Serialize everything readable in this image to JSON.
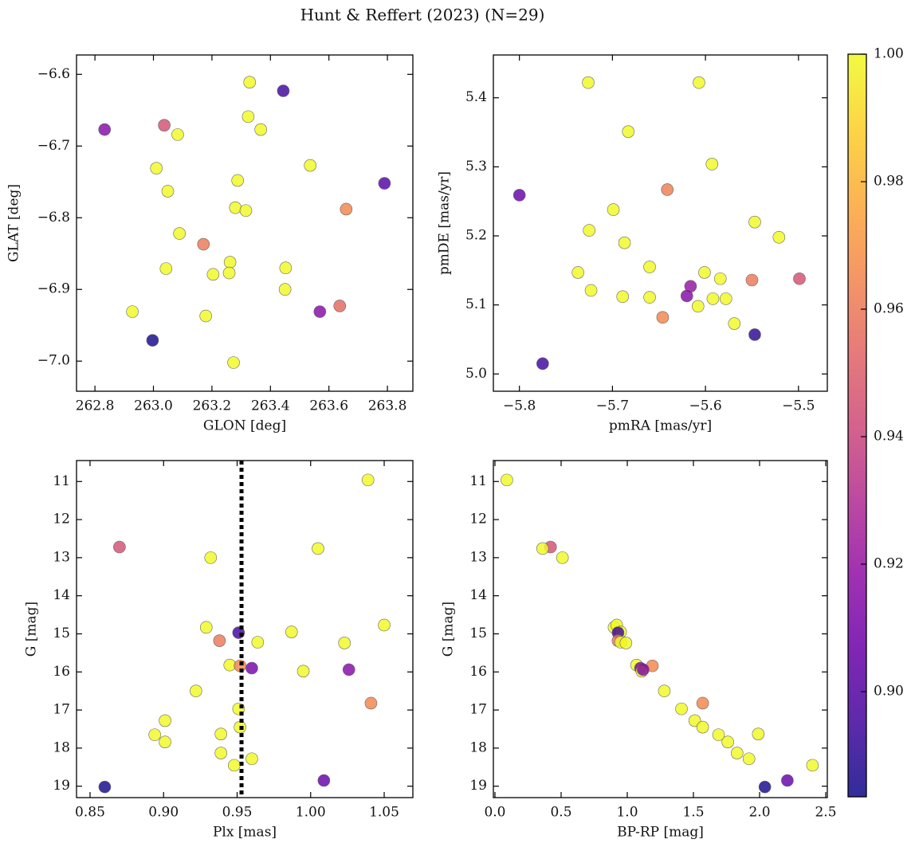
{
  "title": "Hunt & Reffert (2023) (N=29)",
  "colorbar": {
    "colormap": "plasma",
    "clim": [
      0.8835,
      1.0
    ],
    "ticks": [
      {
        "value": 0.9,
        "label": "0.90"
      },
      0.92,
      0.94,
      0.96,
      0.98,
      {
        "value": 1.0,
        "label": "1.00"
      }
    ]
  },
  "chart_data": [
    {
      "type": "scatter",
      "xlabel": "GLON [deg]",
      "ylabel": "GLAT [deg]",
      "xlim": [
        262.737,
        263.887
      ],
      "ylim": [
        -7.042,
        -6.573
      ],
      "xticks": [
        262.8,
        {
          "value": 263,
          "label": "263.0"
        },
        263.2,
        263.4,
        263.6,
        263.8
      ],
      "yticks": [
        {
          "value": -6.6,
          "label": "−6.6"
        },
        {
          "value": -6.7,
          "label": "−6.7"
        },
        {
          "value": -6.8,
          "label": "−6.8"
        },
        {
          "value": -6.9,
          "label": "−6.9"
        },
        {
          "value": -7.0,
          "label": "−7.0"
        }
      ],
      "x": [
        262.833,
        263.037,
        263.083,
        263.329,
        263.444,
        263.324,
        263.367,
        263.01,
        263.536,
        263.049,
        263.288,
        263.79,
        263.28,
        263.316,
        263.659,
        263.089,
        263.171,
        263.262,
        263.043,
        263.452,
        263.204,
        263.259,
        263.45,
        262.928,
        263.569,
        263.637,
        263.179,
        262.997,
        263.274
      ],
      "y": [
        -6.677,
        -6.671,
        -6.684,
        -6.611,
        -6.623,
        -6.659,
        -6.677,
        -6.731,
        -6.727,
        -6.763,
        -6.748,
        -6.752,
        -6.786,
        -6.79,
        -6.788,
        -6.822,
        -6.837,
        -6.862,
        -6.871,
        -6.87,
        -6.879,
        -6.877,
        -6.9,
        -6.931,
        -6.931,
        -6.923,
        -6.937,
        -6.971,
        -7.002
      ],
      "c": [
        0.915,
        0.945,
        1.0,
        1.0,
        0.895,
        1.0,
        1.0,
        1.0,
        1.0,
        1.0,
        1.0,
        0.9,
        1.0,
        1.0,
        0.965,
        1.0,
        0.96,
        1.0,
        1.0,
        1.0,
        1.0,
        1.0,
        1.0,
        1.0,
        0.915,
        0.955,
        1.0,
        0.885,
        1.0
      ]
    },
    {
      "type": "scatter",
      "xlabel": "pmRA [mas/yr]",
      "ylabel": "pmDE [mas/yr]",
      "xlim": [
        -5.828,
        -5.469
      ],
      "ylim": [
        4.975,
        5.462
      ],
      "xticks": [
        {
          "value": -5.8,
          "label": "−5.8"
        },
        {
          "value": -5.7,
          "label": "−5.7"
        },
        {
          "value": -5.6,
          "label": "−5.6"
        },
        {
          "value": -5.5,
          "label": "−5.5"
        }
      ],
      "yticks": [
        {
          "value": 5.0,
          "label": "5.0"
        },
        5.1,
        5.2,
        5.3,
        5.4
      ],
      "x": [
        -5.726,
        -5.607,
        -5.683,
        -5.593,
        -5.8,
        -5.641,
        -5.699,
        -5.547,
        -5.725,
        -5.521,
        -5.687,
        -5.66,
        -5.737,
        -5.601,
        -5.584,
        -5.723,
        -5.616,
        -5.689,
        -5.66,
        -5.62,
        -5.608,
        -5.592,
        -5.578,
        -5.55,
        -5.499,
        -5.646,
        -5.569,
        -5.547,
        -5.775
      ],
      "y": [
        5.422,
        5.422,
        5.351,
        5.304,
        5.259,
        5.267,
        5.238,
        5.22,
        5.208,
        5.198,
        5.19,
        5.155,
        5.147,
        5.147,
        5.138,
        5.121,
        5.127,
        5.112,
        5.111,
        5.113,
        5.098,
        5.109,
        5.109,
        5.136,
        5.138,
        5.082,
        5.073,
        5.057,
        5.015
      ],
      "c": [
        1.0,
        1.0,
        1.0,
        1.0,
        0.905,
        0.962,
        1.0,
        1.0,
        1.0,
        1.0,
        1.0,
        1.0,
        1.0,
        1.0,
        1.0,
        1.0,
        0.92,
        1.0,
        1.0,
        0.915,
        1.0,
        1.0,
        1.0,
        0.96,
        0.945,
        0.965,
        1.0,
        0.89,
        0.895
      ]
    },
    {
      "type": "scatter",
      "xlabel": "Plx [mas]",
      "ylabel": "G [mag]",
      "xlim": [
        0.8408,
        1.0695
      ],
      "ylim": [
        19.3,
        10.45
      ],
      "vline": 0.953,
      "xticks": [
        0.85,
        {
          "value": 0.9,
          "label": "0.90"
        },
        0.95,
        {
          "value": 1.0,
          "label": "1.00"
        },
        1.05
      ],
      "yticks": [
        11,
        12,
        13,
        14,
        15,
        16,
        17,
        18,
        19
      ],
      "x": [
        0.86,
        0.87,
        0.932,
        1.039,
        1.005,
        0.929,
        1.05,
        0.987,
        0.951,
        0.938,
        0.964,
        1.023,
        0.945,
        0.952,
        0.96,
        0.995,
        1.026,
        0.922,
        1.041,
        0.951,
        0.901,
        0.952,
        0.894,
        0.939,
        0.901,
        0.939,
        0.96,
        0.948,
        1.009
      ],
      "y": [
        19.02,
        12.72,
        13.0,
        10.96,
        12.76,
        14.83,
        14.77,
        14.95,
        14.97,
        15.18,
        15.22,
        15.24,
        15.82,
        15.84,
        15.9,
        15.98,
        15.94,
        16.5,
        16.82,
        16.97,
        17.28,
        17.45,
        17.65,
        17.63,
        17.84,
        18.13,
        18.28,
        18.45,
        18.85
      ],
      "c": [
        0.885,
        0.945,
        1.0,
        1.0,
        1.0,
        1.0,
        1.0,
        1.0,
        0.895,
        0.96,
        1.0,
        1.0,
        1.0,
        0.965,
        0.91,
        1.0,
        0.915,
        1.0,
        0.965,
        1.0,
        1.0,
        1.0,
        1.0,
        1.0,
        1.0,
        1.0,
        1.0,
        1.0,
        0.905
      ]
    },
    {
      "type": "scatter",
      "xlabel": "BP-RP [mag]",
      "ylabel": "G [mag]",
      "xlim": [
        -0.012,
        2.512
      ],
      "ylim": [
        19.3,
        10.45
      ],
      "xticks": [
        {
          "value": 0,
          "label": "0.0"
        },
        0.5,
        {
          "value": 1,
          "label": "1.0"
        },
        1.5,
        {
          "value": 2,
          "label": "2.0"
        },
        2.5
      ],
      "yticks": [
        11,
        12,
        13,
        14,
        15,
        16,
        17,
        18,
        19
      ],
      "x": [
        2.04,
        0.42,
        0.51,
        0.09,
        0.36,
        0.9,
        0.92,
        0.95,
        0.93,
        0.93,
        0.95,
        0.99,
        1.07,
        1.19,
        1.1,
        1.11,
        1.12,
        1.28,
        1.57,
        1.41,
        1.51,
        1.57,
        1.69,
        1.99,
        1.76,
        1.83,
        1.92,
        2.4,
        2.21
      ],
      "y": [
        19.02,
        12.72,
        13.0,
        10.96,
        12.76,
        14.83,
        14.77,
        14.95,
        14.97,
        15.18,
        15.22,
        15.24,
        15.82,
        15.84,
        15.9,
        15.98,
        15.94,
        16.5,
        16.82,
        16.97,
        17.28,
        17.45,
        17.65,
        17.63,
        17.84,
        18.13,
        18.28,
        18.45,
        18.85
      ],
      "c": [
        0.885,
        0.945,
        1.0,
        1.0,
        1.0,
        1.0,
        1.0,
        1.0,
        0.895,
        0.96,
        1.0,
        1.0,
        1.0,
        0.965,
        0.91,
        1.0,
        0.915,
        1.0,
        0.965,
        1.0,
        1.0,
        1.0,
        1.0,
        1.0,
        1.0,
        1.0,
        1.0,
        1.0,
        0.905
      ]
    }
  ]
}
